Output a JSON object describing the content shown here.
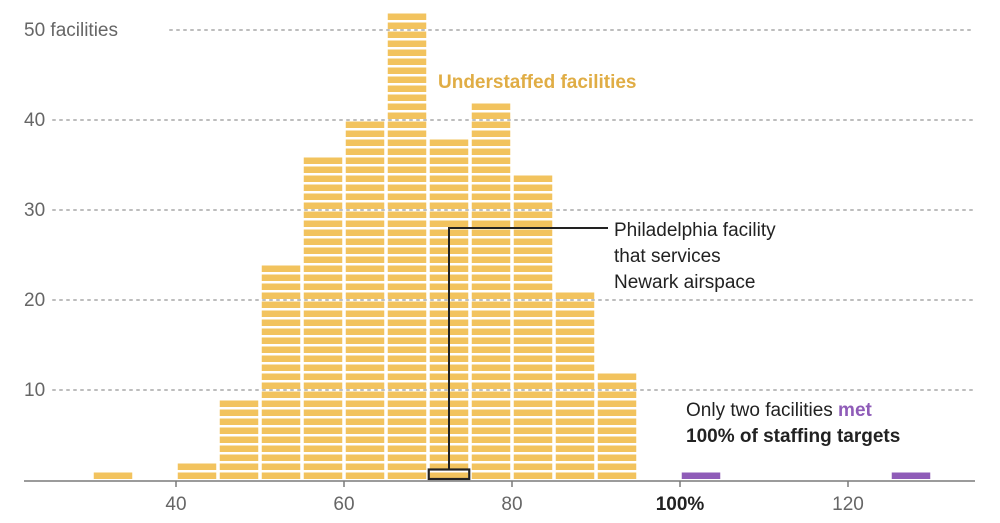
{
  "chart_data": {
    "type": "bar",
    "title": "",
    "xlabel": "",
    "ylabel": "",
    "x_unit": "% of staffing target",
    "xlim": [
      24,
      136
    ],
    "ylim": [
      0,
      50
    ],
    "y_ticks": [
      {
        "value": 10,
        "label": "10"
      },
      {
        "value": 20,
        "label": "20"
      },
      {
        "value": 30,
        "label": "30"
      },
      {
        "value": 40,
        "label": "40"
      },
      {
        "value": 50,
        "label": "50 facilities"
      }
    ],
    "x_ticks": [
      {
        "value": 40,
        "label": "40",
        "bold": false
      },
      {
        "value": 60,
        "label": "60",
        "bold": false
      },
      {
        "value": 80,
        "label": "80",
        "bold": false
      },
      {
        "value": 100,
        "label": "100%",
        "bold": true
      },
      {
        "value": 120,
        "label": "120",
        "bold": false
      }
    ],
    "bin_width": 5,
    "series": [
      {
        "name": "Understaffed facilities",
        "color": "#f2c35e",
        "bins": [
          {
            "start": 30,
            "value": 1
          },
          {
            "start": 40,
            "value": 2
          },
          {
            "start": 45,
            "value": 9
          },
          {
            "start": 50,
            "value": 24
          },
          {
            "start": 55,
            "value": 36
          },
          {
            "start": 60,
            "value": 40
          },
          {
            "start": 65,
            "value": 52
          },
          {
            "start": 70,
            "value": 38
          },
          {
            "start": 75,
            "value": 42
          },
          {
            "start": 80,
            "value": 34
          },
          {
            "start": 85,
            "value": 21
          },
          {
            "start": 90,
            "value": 12
          }
        ]
      },
      {
        "name": "Only two facilities met 100% of staffing targets",
        "color": "#8f5cb8",
        "bins": [
          {
            "start": 100,
            "value": 1
          },
          {
            "start": 125,
            "value": 1
          }
        ]
      }
    ],
    "legend_label": "Understaffed facilities",
    "legend_color": "#e0ad45",
    "highlight": {
      "bin_start": 70,
      "unit_index": 1,
      "color": "#222222"
    },
    "annotations": {
      "philadelphia": {
        "lines": [
          "Philadelphia facility",
          "that services",
          "Newark airspace"
        ]
      },
      "met_targets": {
        "line1_plain": "Only two facilities ",
        "line1_highlight": "met",
        "line2_highlight": "100% of staffing targets",
        "highlight_color": "#8f5cb8"
      }
    }
  }
}
